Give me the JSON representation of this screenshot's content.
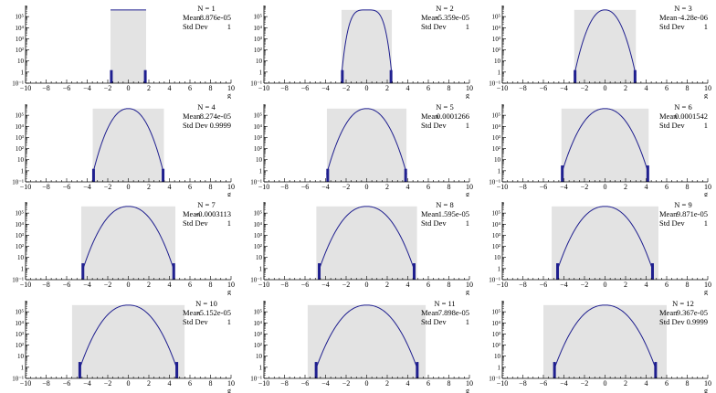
{
  "chart_data": [
    {
      "type": "area",
      "title": "N = 1",
      "stats": {
        "mean_label": "Mean",
        "mean_value": "8.876e-05",
        "std_label": "Std Dev",
        "std_value": "1"
      },
      "xlabel": "g",
      "xlim": [
        -10,
        10
      ],
      "x_ticks": [
        -10,
        -8,
        -6,
        -4,
        -2,
        0,
        2,
        4,
        6,
        8,
        10
      ],
      "y_scale": "log",
      "ylim": [
        0.1,
        1000000
      ],
      "y_ticks": [
        {
          "value": 0.1,
          "label": "10⁻¹"
        },
        {
          "value": 1,
          "label": "1"
        },
        {
          "value": 10,
          "label": "10"
        },
        {
          "value": 100,
          "label": "10²"
        },
        {
          "value": 1000,
          "label": "10³"
        },
        {
          "value": 10000,
          "label": "10⁴"
        },
        {
          "value": 100000,
          "label": "10⁵"
        }
      ],
      "shaded_range": [
        -1.732,
        1.732
      ],
      "curve": {
        "peak": 400000,
        "support": 1.732,
        "shape": "flat"
      }
    },
    {
      "type": "area",
      "title": "N = 2",
      "stats": {
        "mean_label": "Mean",
        "mean_value": "-5.359e-05",
        "std_label": "Std Dev",
        "std_value": "1"
      },
      "xlabel": "g",
      "xlim": [
        -10,
        10
      ],
      "x_ticks": [
        -10,
        -8,
        -6,
        -4,
        -2,
        0,
        2,
        4,
        6,
        8,
        10
      ],
      "y_scale": "log",
      "ylim": [
        0.1,
        1000000
      ],
      "y_ticks": [
        {
          "value": 0.1,
          "label": "10⁻¹"
        },
        {
          "value": 1,
          "label": "1"
        },
        {
          "value": 10,
          "label": "10"
        },
        {
          "value": 100,
          "label": "10²"
        },
        {
          "value": 1000,
          "label": "10³"
        },
        {
          "value": 10000,
          "label": "10⁴"
        },
        {
          "value": 100000,
          "label": "10⁵"
        }
      ],
      "shaded_range": [
        -2.449,
        2.449
      ],
      "curve": {
        "peak": 400000,
        "support": 2.449,
        "shape": "triangle"
      }
    },
    {
      "type": "area",
      "title": "N = 3",
      "stats": {
        "mean_label": "Mean",
        "mean_value": "-4.28e-06",
        "std_label": "Std Dev",
        "std_value": "1"
      },
      "xlabel": "g",
      "xlim": [
        -10,
        10
      ],
      "x_ticks": [
        -10,
        -8,
        -6,
        -4,
        -2,
        0,
        2,
        4,
        6,
        8,
        10
      ],
      "y_scale": "log",
      "ylim": [
        0.1,
        1000000
      ],
      "y_ticks": [
        {
          "value": 0.1,
          "label": "10⁻¹"
        },
        {
          "value": 1,
          "label": "1"
        },
        {
          "value": 10,
          "label": "10"
        },
        {
          "value": 100,
          "label": "10²"
        },
        {
          "value": 1000,
          "label": "10³"
        },
        {
          "value": 10000,
          "label": "10⁴"
        },
        {
          "value": 100000,
          "label": "10⁵"
        }
      ],
      "shaded_range": [
        -3.0,
        3.0
      ],
      "curve": {
        "peak": 400000,
        "support": 3.0,
        "shape": "bell"
      }
    },
    {
      "type": "area",
      "title": "N = 4",
      "stats": {
        "mean_label": "Mean",
        "mean_value": "8.274e-05",
        "std_label": "Std Dev",
        "std_value": "0.9999"
      },
      "xlabel": "g",
      "xlim": [
        -10,
        10
      ],
      "x_ticks": [
        -10,
        -8,
        -6,
        -4,
        -2,
        0,
        2,
        4,
        6,
        8,
        10
      ],
      "y_scale": "log",
      "ylim": [
        0.1,
        1000000
      ],
      "y_ticks": [
        {
          "value": 0.1,
          "label": "10⁻¹"
        },
        {
          "value": 1,
          "label": "1"
        },
        {
          "value": 10,
          "label": "10"
        },
        {
          "value": 100,
          "label": "10²"
        },
        {
          "value": 1000,
          "label": "10³"
        },
        {
          "value": 10000,
          "label": "10⁴"
        },
        {
          "value": 100000,
          "label": "10⁵"
        }
      ],
      "shaded_range": [
        -3.464,
        3.464
      ],
      "curve": {
        "peak": 400000,
        "support": 3.464,
        "shape": "bell"
      }
    },
    {
      "type": "area",
      "title": "N = 5",
      "stats": {
        "mean_label": "Mean",
        "mean_value": "0.0001266",
        "std_label": "Std Dev",
        "std_value": "1"
      },
      "xlabel": "g",
      "xlim": [
        -10,
        10
      ],
      "x_ticks": [
        -10,
        -8,
        -6,
        -4,
        -2,
        0,
        2,
        4,
        6,
        8,
        10
      ],
      "y_scale": "log",
      "ylim": [
        0.1,
        1000000
      ],
      "y_ticks": [
        {
          "value": 0.1,
          "label": "10⁻¹"
        },
        {
          "value": 1,
          "label": "1"
        },
        {
          "value": 10,
          "label": "10"
        },
        {
          "value": 100,
          "label": "10²"
        },
        {
          "value": 1000,
          "label": "10³"
        },
        {
          "value": 10000,
          "label": "10⁴"
        },
        {
          "value": 100000,
          "label": "10⁵"
        }
      ],
      "shaded_range": [
        -3.873,
        3.873
      ],
      "curve": {
        "peak": 400000,
        "support": 3.9,
        "shape": "bell"
      }
    },
    {
      "type": "area",
      "title": "N = 6",
      "stats": {
        "mean_label": "Mean",
        "mean_value": "0.0001542",
        "std_label": "Std Dev",
        "std_value": "1"
      },
      "xlabel": "g",
      "xlim": [
        -10,
        10
      ],
      "x_ticks": [
        -10,
        -8,
        -6,
        -4,
        -2,
        0,
        2,
        4,
        6,
        8,
        10
      ],
      "y_scale": "log",
      "ylim": [
        0.1,
        1000000
      ],
      "y_ticks": [
        {
          "value": 0.1,
          "label": "10⁻¹"
        },
        {
          "value": 1,
          "label": "1"
        },
        {
          "value": 10,
          "label": "10"
        },
        {
          "value": 100,
          "label": "10²"
        },
        {
          "value": 1000,
          "label": "10³"
        },
        {
          "value": 10000,
          "label": "10⁴"
        },
        {
          "value": 100000,
          "label": "10⁵"
        }
      ],
      "shaded_range": [
        -4.243,
        4.243
      ],
      "curve": {
        "peak": 400000,
        "support": 4.243,
        "shape": "bell"
      }
    },
    {
      "type": "area",
      "title": "N = 7",
      "stats": {
        "mean_label": "Mean",
        "mean_value": "-0.0003113",
        "std_label": "Std Dev",
        "std_value": "1"
      },
      "xlabel": "g",
      "xlim": [
        -10,
        10
      ],
      "x_ticks": [
        -10,
        -8,
        -6,
        -4,
        -2,
        0,
        2,
        4,
        6,
        8,
        10
      ],
      "y_scale": "log",
      "ylim": [
        0.1,
        1000000
      ],
      "y_ticks": [
        {
          "value": 0.1,
          "label": "10⁻¹"
        },
        {
          "value": 1,
          "label": "1"
        },
        {
          "value": 10,
          "label": "10"
        },
        {
          "value": 100,
          "label": "10²"
        },
        {
          "value": 1000,
          "label": "10³"
        },
        {
          "value": 10000,
          "label": "10⁴"
        },
        {
          "value": 100000,
          "label": "10⁵"
        }
      ],
      "shaded_range": [
        -4.583,
        4.583
      ],
      "curve": {
        "peak": 400000,
        "support": 4.5,
        "shape": "bell"
      }
    },
    {
      "type": "area",
      "title": "N = 8",
      "stats": {
        "mean_label": "Mean",
        "mean_value": "1.595e-05",
        "std_label": "Std Dev",
        "std_value": "1"
      },
      "xlabel": "g",
      "xlim": [
        -10,
        10
      ],
      "x_ticks": [
        -10,
        -8,
        -6,
        -4,
        -2,
        0,
        2,
        4,
        6,
        8,
        10
      ],
      "y_scale": "log",
      "ylim": [
        0.1,
        1000000
      ],
      "y_ticks": [
        {
          "value": 0.1,
          "label": "10⁻¹"
        },
        {
          "value": 1,
          "label": "1"
        },
        {
          "value": 10,
          "label": "10"
        },
        {
          "value": 100,
          "label": "10²"
        },
        {
          "value": 1000,
          "label": "10³"
        },
        {
          "value": 10000,
          "label": "10⁴"
        },
        {
          "value": 100000,
          "label": "10⁵"
        }
      ],
      "shaded_range": [
        -4.899,
        4.899
      ],
      "curve": {
        "peak": 400000,
        "support": 4.7,
        "shape": "bell"
      }
    },
    {
      "type": "area",
      "title": "N = 9",
      "stats": {
        "mean_label": "Mean",
        "mean_value": "9.871e-05",
        "std_label": "Std Dev",
        "std_value": "1"
      },
      "xlabel": "g",
      "xlim": [
        -10,
        10
      ],
      "x_ticks": [
        -10,
        -8,
        -6,
        -4,
        -2,
        0,
        2,
        4,
        6,
        8,
        10
      ],
      "y_scale": "log",
      "ylim": [
        0.1,
        1000000
      ],
      "y_ticks": [
        {
          "value": 0.1,
          "label": "10⁻¹"
        },
        {
          "value": 1,
          "label": "1"
        },
        {
          "value": 10,
          "label": "10"
        },
        {
          "value": 100,
          "label": "10²"
        },
        {
          "value": 1000,
          "label": "10³"
        },
        {
          "value": 10000,
          "label": "10⁴"
        },
        {
          "value": 100000,
          "label": "10⁵"
        }
      ],
      "shaded_range": [
        -5.196,
        5.196
      ],
      "curve": {
        "peak": 400000,
        "support": 4.7,
        "shape": "bell"
      }
    },
    {
      "type": "area",
      "title": "N = 10",
      "stats": {
        "mean_label": "Mean",
        "mean_value": "-5.152e-05",
        "std_label": "Std Dev",
        "std_value": "1"
      },
      "xlabel": "g",
      "xlim": [
        -10,
        10
      ],
      "x_ticks": [
        -10,
        -8,
        -6,
        -4,
        -2,
        0,
        2,
        4,
        6,
        8,
        10
      ],
      "y_scale": "log",
      "ylim": [
        0.1,
        1000000
      ],
      "y_ticks": [
        {
          "value": 0.1,
          "label": "10⁻¹"
        },
        {
          "value": 1,
          "label": "1"
        },
        {
          "value": 10,
          "label": "10"
        },
        {
          "value": 100,
          "label": "10²"
        },
        {
          "value": 1000,
          "label": "10³"
        },
        {
          "value": 10000,
          "label": "10⁴"
        },
        {
          "value": 100000,
          "label": "10⁵"
        }
      ],
      "shaded_range": [
        -5.477,
        5.477
      ],
      "curve": {
        "peak": 400000,
        "support": 4.8,
        "shape": "bell"
      }
    },
    {
      "type": "area",
      "title": "N = 11",
      "stats": {
        "mean_label": "Mean",
        "mean_value": "7.898e-05",
        "std_label": "Std Dev",
        "std_value": "1"
      },
      "xlabel": "g",
      "xlim": [
        -10,
        10
      ],
      "x_ticks": [
        -10,
        -8,
        -6,
        -4,
        -2,
        0,
        2,
        4,
        6,
        8,
        10
      ],
      "y_scale": "log",
      "ylim": [
        0.1,
        1000000
      ],
      "y_ticks": [
        {
          "value": 0.1,
          "label": "10⁻¹"
        },
        {
          "value": 1,
          "label": "1"
        },
        {
          "value": 10,
          "label": "10"
        },
        {
          "value": 100,
          "label": "10²"
        },
        {
          "value": 1000,
          "label": "10³"
        },
        {
          "value": 10000,
          "label": "10⁴"
        },
        {
          "value": 100000,
          "label": "10⁵"
        }
      ],
      "shaded_range": [
        -5.745,
        5.745
      ],
      "curve": {
        "peak": 400000,
        "support": 5.0,
        "shape": "bell"
      }
    },
    {
      "type": "area",
      "title": "N = 12",
      "stats": {
        "mean_label": "Mean",
        "mean_value": "9.367e-05",
        "std_label": "Std Dev",
        "std_value": "0.9999"
      },
      "xlabel": "g",
      "xlim": [
        -10,
        10
      ],
      "x_ticks": [
        -10,
        -8,
        -6,
        -4,
        -2,
        0,
        2,
        4,
        6,
        8,
        10
      ],
      "y_scale": "log",
      "ylim": [
        0.1,
        1000000
      ],
      "y_ticks": [
        {
          "value": 0.1,
          "label": "10⁻¹"
        },
        {
          "value": 1,
          "label": "1"
        },
        {
          "value": 10,
          "label": "10"
        },
        {
          "value": 100,
          "label": "10²"
        },
        {
          "value": 1000,
          "label": "10³"
        },
        {
          "value": 10000,
          "label": "10⁴"
        },
        {
          "value": 100000,
          "label": "10⁵"
        }
      ],
      "shaded_range": [
        -6.0,
        6.0
      ],
      "curve": {
        "peak": 400000,
        "support": 5.0,
        "shape": "bell"
      }
    }
  ],
  "colors": {
    "curve": "#1f1f8f",
    "shade": "#e3e3e3",
    "axis": "#000000",
    "background": "#ffffff"
  }
}
